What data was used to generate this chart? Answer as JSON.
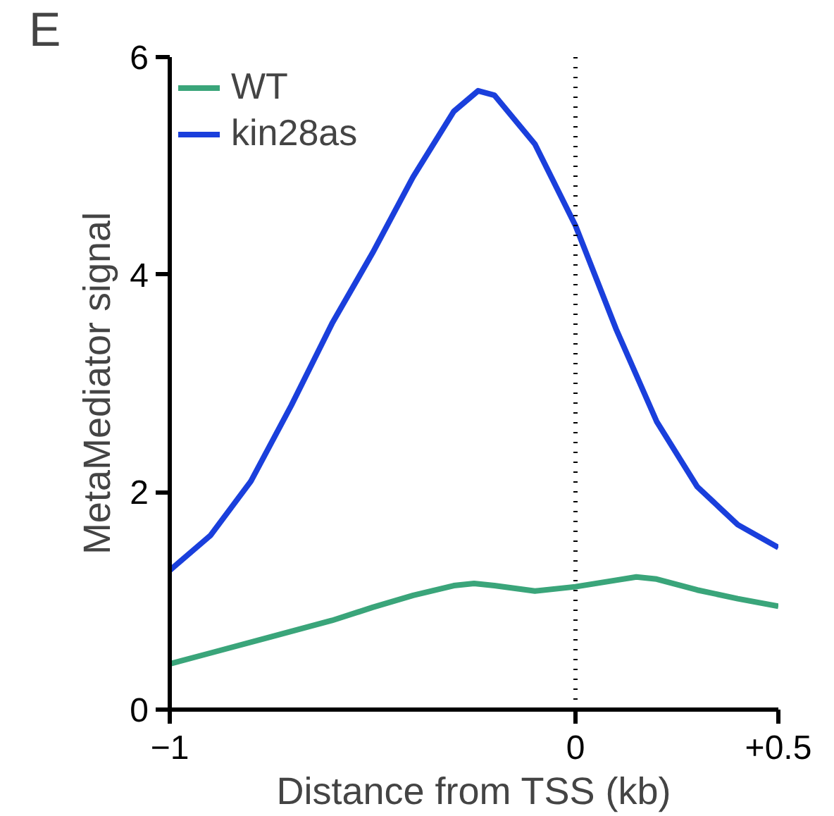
{
  "chart_data": {
    "type": "line",
    "xlabel": "Distance from TSS (kb)",
    "ylabel": "MetaMediator signal",
    "annotations": [
      "E"
    ],
    "xlim": [
      -1,
      0.5
    ],
    "xticks": [
      -1,
      0,
      {
        "value": 0.5,
        "label": "+0.5"
      }
    ],
    "ylim": [
      0,
      6
    ],
    "yticks": [
      0,
      2,
      4,
      6
    ],
    "grid": false,
    "legend": "top left",
    "line_style": "solid",
    "ref_lines": [
      {
        "axis": "x",
        "value": 0,
        "label": null,
        "color": "#000000",
        "line_style": "dotted"
      }
    ],
    "series": [
      {
        "name": "WT",
        "color": "#3aa57a",
        "x": [
          -1,
          -0.9,
          -0.75,
          -0.6,
          -0.5,
          -0.4,
          -0.3,
          -0.25,
          -0.2,
          -0.1,
          0,
          0.1,
          0.15,
          0.2,
          0.3,
          0.4,
          0.5
        ],
        "values": [
          0.42,
          0.52,
          0.67,
          0.82,
          0.94,
          1.05,
          1.14,
          1.16,
          1.14,
          1.09,
          1.13,
          1.19,
          1.22,
          1.2,
          1.1,
          1.02,
          0.95
        ]
      },
      {
        "name": "kin28as",
        "color": "#1a3fdc",
        "x": [
          -1,
          -0.9,
          -0.8,
          -0.7,
          -0.6,
          -0.5,
          -0.4,
          -0.3,
          -0.24,
          -0.2,
          -0.1,
          0,
          0.1,
          0.2,
          0.3,
          0.4,
          0.5
        ],
        "values": [
          1.28,
          1.6,
          2.1,
          2.8,
          3.55,
          4.2,
          4.9,
          5.5,
          5.69,
          5.65,
          5.2,
          4.45,
          3.5,
          2.65,
          2.05,
          1.7,
          1.49
        ]
      }
    ]
  }
}
